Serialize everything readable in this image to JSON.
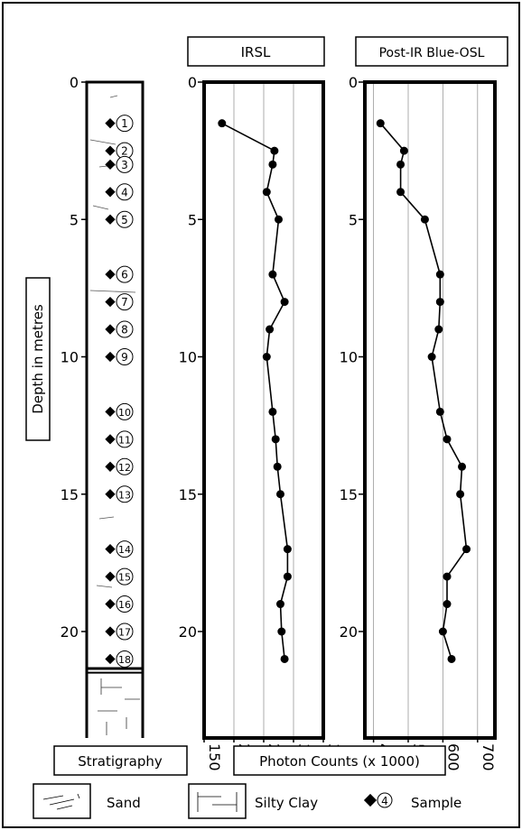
{
  "chart_data": [
    {
      "type": "line",
      "title": "IRSL",
      "xlabel": "Photon Counts (x 1000)",
      "ylabel": "Depth in metres",
      "xlim": [
        150,
        350
      ],
      "ylim": [
        0,
        22
      ],
      "x_ticks": [
        "150",
        "200",
        "250",
        "300",
        "350"
      ],
      "y_ticks": [
        "0",
        "5",
        "10",
        "15",
        "20"
      ],
      "grid": "vertical",
      "points": [
        {
          "x": 180,
          "y": 1.5
        },
        {
          "x": 268,
          "y": 2.5
        },
        {
          "x": 265,
          "y": 3.0
        },
        {
          "x": 255,
          "y": 4.0
        },
        {
          "x": 275,
          "y": 5.0
        },
        {
          "x": 265,
          "y": 7.0
        },
        {
          "x": 285,
          "y": 8.0
        },
        {
          "x": 260,
          "y": 9.0
        },
        {
          "x": 255,
          "y": 10.0
        },
        {
          "x": 265,
          "y": 12.0
        },
        {
          "x": 270,
          "y": 13.0
        },
        {
          "x": 273,
          "y": 14.0
        },
        {
          "x": 278,
          "y": 15.0
        },
        {
          "x": 290,
          "y": 17.0
        },
        {
          "x": 290,
          "y": 18.0
        },
        {
          "x": 278,
          "y": 19.0
        },
        {
          "x": 280,
          "y": 20.0
        },
        {
          "x": 285,
          "y": 21.0
        }
      ]
    },
    {
      "type": "line",
      "title": "Post-IR Blue-OSL",
      "xlabel": "Photon Counts (x 1000)",
      "ylabel": "Depth in metres",
      "xlim": [
        375,
        750
      ],
      "ylim": [
        0,
        22
      ],
      "x_ticks": [
        "400",
        "500",
        "600",
        "700"
      ],
      "y_ticks": [
        "0",
        "5",
        "10",
        "15",
        "20"
      ],
      "grid": "vertical",
      "points": [
        {
          "x": 420,
          "y": 1.5
        },
        {
          "x": 488,
          "y": 2.5
        },
        {
          "x": 478,
          "y": 3.0
        },
        {
          "x": 478,
          "y": 4.0
        },
        {
          "x": 548,
          "y": 5.0
        },
        {
          "x": 592,
          "y": 7.0
        },
        {
          "x": 592,
          "y": 8.0
        },
        {
          "x": 588,
          "y": 9.0
        },
        {
          "x": 568,
          "y": 10.0
        },
        {
          "x": 592,
          "y": 12.0
        },
        {
          "x": 612,
          "y": 13.0
        },
        {
          "x": 655,
          "y": 14.0
        },
        {
          "x": 650,
          "y": 15.0
        },
        {
          "x": 668,
          "y": 17.0
        },
        {
          "x": 612,
          "y": 18.0
        },
        {
          "x": 612,
          "y": 19.0
        },
        {
          "x": 600,
          "y": 20.0
        },
        {
          "x": 625,
          "y": 21.0
        }
      ]
    }
  ],
  "stratigraphy": {
    "y_ticks": [
      "0",
      "5",
      "10",
      "15",
      "20"
    ],
    "samples": [
      {
        "label": "1",
        "depth": 1.5
      },
      {
        "label": "2",
        "depth": 2.5
      },
      {
        "label": "3",
        "depth": 3.0
      },
      {
        "label": "4",
        "depth": 4.0
      },
      {
        "label": "5",
        "depth": 5.0
      },
      {
        "label": "6",
        "depth": 7.0
      },
      {
        "label": "7",
        "depth": 8.0
      },
      {
        "label": "8",
        "depth": 9.0
      },
      {
        "label": "9",
        "depth": 10.0
      },
      {
        "label": "10",
        "depth": 12.0
      },
      {
        "label": "11",
        "depth": 13.0
      },
      {
        "label": "12",
        "depth": 14.0
      },
      {
        "label": "13",
        "depth": 15.0
      },
      {
        "label": "14",
        "depth": 17.0
      },
      {
        "label": "15",
        "depth": 18.0
      },
      {
        "label": "16",
        "depth": 19.0
      },
      {
        "label": "17",
        "depth": 20.0
      },
      {
        "label": "18",
        "depth": 21.0
      }
    ],
    "sand_to_depth": 21.5
  },
  "labels": {
    "y_axis": "Depth in metres",
    "stratigraphy": "Stratigraphy",
    "photon_counts": "Photon Counts (x 1000)"
  },
  "legend": {
    "sand": "Sand",
    "silty_clay": "Silty Clay",
    "sample": "Sample",
    "sample_number": "4"
  }
}
